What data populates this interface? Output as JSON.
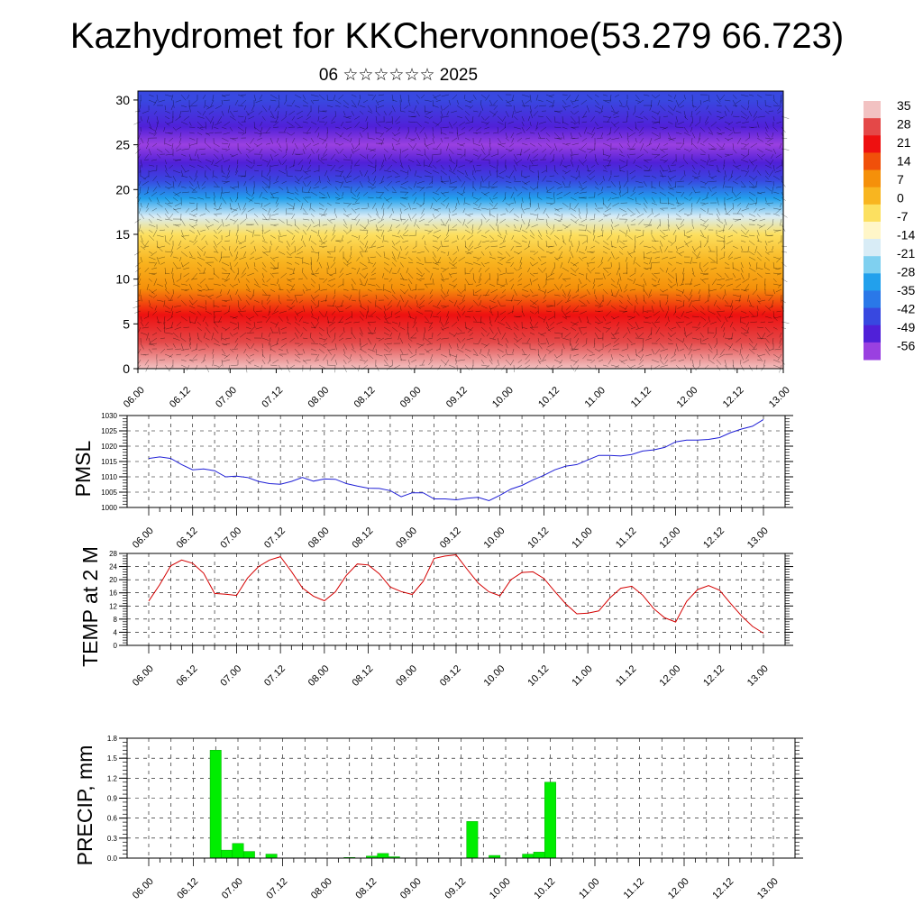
{
  "title": "Kazhydromet for KKChervonnoe(53.279 66.723)",
  "subtitle": "06 ☆☆☆☆☆☆ 2025",
  "colors": {
    "pmsl_line": "#1f1fd6",
    "temp_line": "#d40000",
    "precip_bar": "#00ee00",
    "precip_bar_edge": "#00aa00"
  },
  "chart_data": [
    {
      "type": "heatmap",
      "name": "vertical-cross-section",
      "x_ticks": [
        "06.00",
        "06.12",
        "07.00",
        "07.12",
        "08.00",
        "08.12",
        "09.00",
        "09.12",
        "10.00",
        "10.12",
        "11.00",
        "11.12",
        "12.00",
        "12.12",
        "13.00"
      ],
      "y_ticks": [
        "0",
        "5",
        "10",
        "15",
        "20",
        "25",
        "30"
      ],
      "ylim": [
        0,
        31
      ],
      "colorbar_labels": [
        "35",
        "28",
        "21",
        "14",
        "7",
        "0",
        "-7",
        "-14",
        "-21",
        "-28",
        "-35",
        "-42",
        "-49",
        "-56"
      ],
      "colorbar_colors": [
        "#f2c2c2",
        "#e44848",
        "#ee1010",
        "#f0500a",
        "#f5900a",
        "#f8b520",
        "#fce060",
        "#fff6c8",
        "#d8ecf6",
        "#7fd0f0",
        "#22a0ec",
        "#2a78e8",
        "#3848e0",
        "#5020d8",
        "#9a40e0"
      ],
      "profile_levels": [
        0,
        3,
        6,
        9,
        12,
        15,
        17,
        19,
        21,
        23,
        25,
        27,
        30
      ],
      "profile_temps": [
        33,
        26,
        18,
        9,
        2,
        -10,
        -22,
        -38,
        -52,
        -56,
        -60,
        -56,
        -52
      ]
    },
    {
      "type": "line",
      "name": "PMSL",
      "ylabel": "PMSL",
      "ylim": [
        1000,
        1030
      ],
      "y_ticks": [
        "1000",
        "1005",
        "1010",
        "1015",
        "1020",
        "1025",
        "1030"
      ],
      "x_ticks": [
        "06.00",
        "06.12",
        "07.00",
        "07.12",
        "08.00",
        "08.12",
        "09.00",
        "09.12",
        "10.00",
        "10.12",
        "11.00",
        "11.12",
        "12.00",
        "12.12",
        "13.00"
      ],
      "step_hours": 3,
      "values": [
        1016,
        1016.5,
        1016,
        1014,
        1012.3,
        1012.6,
        1012,
        1010,
        1010.2,
        1009.8,
        1008.5,
        1007.8,
        1007.6,
        1008.5,
        1009.8,
        1008.6,
        1009.3,
        1009.2,
        1007.8,
        1007,
        1006.3,
        1006.2,
        1005.5,
        1003.5,
        1004.8,
        1004.8,
        1002.8,
        1002.8,
        1002.5,
        1003,
        1003.3,
        1002.2,
        1004,
        1006,
        1007.2,
        1009,
        1010.5,
        1012.3,
        1013.5,
        1014,
        1015.5,
        1017,
        1017,
        1016.8,
        1017.3,
        1018.4,
        1018.8,
        1019.6,
        1021.4,
        1022,
        1022,
        1022.2,
        1022.8,
        1024.4,
        1025.6,
        1026.5,
        1028.7
      ]
    },
    {
      "type": "line",
      "name": "TEMP",
      "ylabel": "TEMP at 2 M",
      "ylim": [
        0,
        28
      ],
      "y_ticks": [
        "0",
        "4",
        "8",
        "12",
        "16",
        "20",
        "24",
        "28"
      ],
      "x_ticks": [
        "06.00",
        "06.12",
        "07.00",
        "07.12",
        "08.00",
        "08.12",
        "09.00",
        "09.12",
        "10.00",
        "10.12",
        "11.00",
        "11.12",
        "12.00",
        "12.12",
        "13.00"
      ],
      "step_hours": 3,
      "values": [
        13.5,
        18.5,
        24.2,
        26,
        25,
        22,
        15.8,
        15.6,
        15.2,
        20.5,
        24,
        26,
        27,
        22.5,
        17.5,
        15,
        13.6,
        16.3,
        21.3,
        24.8,
        24.5,
        21.8,
        17.8,
        16.4,
        15.5,
        19.5,
        26.5,
        27.2,
        27.6,
        23.2,
        19,
        16.3,
        15.1,
        20,
        22.2,
        22.4,
        20.4,
        16.4,
        12.6,
        9.6,
        9.8,
        10.5,
        14.4,
        17.4,
        18,
        15.3,
        11.2,
        8.4,
        7.1,
        13.4,
        17,
        18.2,
        16.8,
        12.8,
        9,
        5.8,
        3.7
      ]
    },
    {
      "type": "bar",
      "name": "PRECIP",
      "ylabel": "PRECIP, mm",
      "ylim": [
        0,
        1.8
      ],
      "y_ticks": [
        "0.0",
        "0.3",
        "0.6",
        "0.9",
        "1.2",
        "1.5",
        "1.8"
      ],
      "x_ticks": [
        "06.00",
        "06.12",
        "07.00",
        "07.12",
        "08.00",
        "08.12",
        "09.00",
        "09.12",
        "10.00",
        "10.12",
        "11.00",
        "11.12",
        "12.00",
        "12.12",
        "13.00"
      ],
      "step_hours": 3,
      "values": [
        0,
        0,
        0,
        0,
        0,
        0,
        1.62,
        0.12,
        0.22,
        0.1,
        0,
        0.06,
        0,
        0,
        0,
        0,
        0,
        0,
        0.01,
        0,
        0.03,
        0.07,
        0.02,
        0,
        0,
        0,
        0,
        0,
        0,
        0.55,
        0,
        0.04,
        0,
        0,
        0.06,
        0.09,
        1.14,
        0,
        0,
        0,
        0,
        0,
        0,
        0,
        0,
        0,
        0,
        0,
        0,
        0,
        0,
        0,
        0,
        0,
        0,
        0,
        0
      ]
    }
  ]
}
